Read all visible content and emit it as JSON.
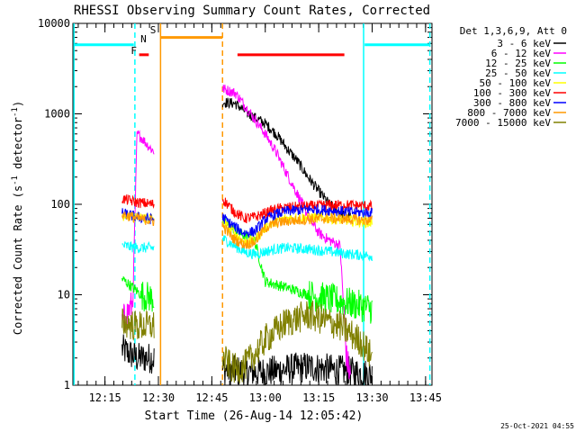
{
  "chart_data": {
    "type": "line",
    "title": "RHESSI Observing Summary Count Rates, Corrected",
    "xlabel": "Start Time (26-Aug-14 12:05:42)",
    "ylabel": "Corrected Count Rate (s⁻¹ detector⁻¹)",
    "ylabel_main": "Corrected Count Rate (s",
    "ylabel_sup1": "-1",
    "ylabel_mid": " detector",
    "ylabel_sup2": "-1",
    "ylabel_end": ")",
    "timestamp": "25-Oct-2021 04:55",
    "legend_header": "Det 1,3,6,9, Att 0",
    "yscale": "log",
    "xlim": [
      12.1,
      13.78
    ],
    "ylim": [
      1,
      10000
    ],
    "x_ticks": [
      {
        "v": 12.25,
        "label": "12:15"
      },
      {
        "v": 12.5,
        "label": "12:30"
      },
      {
        "v": 12.75,
        "label": "12:45"
      },
      {
        "v": 13.0,
        "label": "13:00"
      },
      {
        "v": 13.25,
        "label": "13:15"
      },
      {
        "v": 13.5,
        "label": "13:30"
      },
      {
        "v": 13.75,
        "label": "13:45"
      }
    ],
    "y_ticks": [
      {
        "v": 1,
        "label": "1"
      },
      {
        "v": 10,
        "label": "10"
      },
      {
        "v": 100,
        "label": "100"
      },
      {
        "v": 1000,
        "label": "1000"
      },
      {
        "v": 10000,
        "label": "10000"
      }
    ],
    "x_minor_step": 0.0416667,
    "segments": [
      [
        12.33,
        12.48
      ],
      [
        12.8,
        13.51
      ]
    ],
    "series": [
      {
        "name": "3 - 6 keV",
        "color": "#000000",
        "points": [
          [
            12.33,
            2.5
          ],
          [
            12.4,
            2
          ],
          [
            12.48,
            2
          ],
          [
            12.8,
            1.5
          ],
          [
            12.9,
            1.4
          ],
          [
            13.0,
            1.4
          ],
          [
            13.1,
            1.5
          ],
          [
            13.2,
            1.6
          ],
          [
            13.3,
            1.5
          ],
          [
            13.4,
            1.4
          ],
          [
            13.5,
            1.3
          ]
        ],
        "flare": [
          [
            12.8,
            1350
          ],
          [
            12.86,
            1300
          ],
          [
            12.92,
            1000
          ],
          [
            13.0,
            780
          ],
          [
            13.05,
            600
          ],
          [
            13.1,
            420
          ],
          [
            13.15,
            300
          ],
          [
            13.2,
            200
          ],
          [
            13.25,
            140
          ],
          [
            13.3,
            100
          ],
          [
            13.35,
            80
          ],
          [
            13.4,
            72
          ]
        ]
      },
      {
        "name": "6 - 12 keV",
        "color": "#ff00ff",
        "points": [
          [
            12.33,
            5
          ],
          [
            12.38,
            8
          ],
          [
            12.4,
            600
          ],
          [
            12.42,
            550
          ],
          [
            12.45,
            450
          ],
          [
            12.48,
            380
          ],
          [
            12.8,
            1900
          ],
          [
            12.86,
            1700
          ],
          [
            12.92,
            1100
          ],
          [
            13.0,
            600
          ],
          [
            13.05,
            380
          ],
          [
            13.1,
            220
          ],
          [
            13.15,
            130
          ],
          [
            13.2,
            75
          ],
          [
            13.25,
            48
          ],
          [
            13.3,
            40
          ],
          [
            13.35,
            35
          ],
          [
            13.38,
            2
          ],
          [
            13.4,
            1.2
          ]
        ]
      },
      {
        "name": "12 - 25 keV",
        "color": "#00ff00",
        "points": [
          [
            12.33,
            15
          ],
          [
            12.38,
            12
          ],
          [
            12.42,
            10
          ],
          [
            12.48,
            9
          ],
          [
            12.8,
            65
          ],
          [
            12.9,
            45
          ],
          [
            12.95,
            40
          ],
          [
            13.0,
            14
          ],
          [
            13.1,
            12
          ],
          [
            13.2,
            10
          ],
          [
            13.3,
            9
          ],
          [
            13.4,
            8
          ],
          [
            13.5,
            7
          ]
        ]
      },
      {
        "name": "25 - 50 keV",
        "color": "#00ffff",
        "points": [
          [
            12.33,
            35
          ],
          [
            12.4,
            33
          ],
          [
            12.48,
            33
          ],
          [
            12.8,
            42
          ],
          [
            12.9,
            30
          ],
          [
            12.95,
            28
          ],
          [
            13.0,
            30
          ],
          [
            13.05,
            32
          ],
          [
            13.1,
            33
          ],
          [
            13.2,
            32
          ],
          [
            13.3,
            30
          ],
          [
            13.4,
            28
          ],
          [
            13.5,
            27
          ]
        ]
      },
      {
        "name": "50 - 100 keV",
        "color": "#ffff00",
        "points": [
          [
            12.33,
            75
          ],
          [
            12.4,
            72
          ],
          [
            12.48,
            70
          ],
          [
            12.8,
            62
          ],
          [
            12.85,
            50
          ],
          [
            12.9,
            38
          ],
          [
            12.95,
            40
          ],
          [
            13.0,
            55
          ],
          [
            13.05,
            65
          ],
          [
            13.1,
            70
          ],
          [
            13.2,
            72
          ],
          [
            13.3,
            70
          ],
          [
            13.4,
            66
          ],
          [
            13.5,
            62
          ]
        ]
      },
      {
        "name": "100 - 300 keV",
        "color": "#ff0000",
        "points": [
          [
            12.33,
            115
          ],
          [
            12.4,
            105
          ],
          [
            12.48,
            100
          ],
          [
            12.8,
            115
          ],
          [
            12.85,
            85
          ],
          [
            12.9,
            70
          ],
          [
            12.95,
            72
          ],
          [
            13.0,
            80
          ],
          [
            13.05,
            88
          ],
          [
            13.1,
            92
          ],
          [
            13.2,
            95
          ],
          [
            13.3,
            98
          ],
          [
            13.4,
            98
          ],
          [
            13.5,
            95
          ]
        ]
      },
      {
        "name": "300 - 800 keV",
        "color": "#0000ff",
        "points": [
          [
            12.33,
            80
          ],
          [
            12.4,
            72
          ],
          [
            12.48,
            68
          ],
          [
            12.8,
            72
          ],
          [
            12.85,
            58
          ],
          [
            12.9,
            48
          ],
          [
            12.95,
            50
          ],
          [
            13.0,
            68
          ],
          [
            13.05,
            78
          ],
          [
            13.1,
            84
          ],
          [
            13.2,
            88
          ],
          [
            13.3,
            86
          ],
          [
            13.4,
            82
          ],
          [
            13.5,
            80
          ]
        ]
      },
      {
        "name": "800 - 7000 keV",
        "color": "#ff9900",
        "points": [
          [
            12.33,
            78
          ],
          [
            12.4,
            70
          ],
          [
            12.48,
            65
          ],
          [
            12.8,
            58
          ],
          [
            12.85,
            42
          ],
          [
            12.9,
            36
          ],
          [
            12.95,
            38
          ],
          [
            13.0,
            55
          ],
          [
            13.05,
            62
          ],
          [
            13.1,
            65
          ],
          [
            13.2,
            68
          ],
          [
            13.3,
            70
          ],
          [
            13.4,
            68
          ],
          [
            13.5,
            66
          ]
        ]
      },
      {
        "name": "7000 - 15000 keV",
        "color": "#808000",
        "points": [
          [
            12.33,
            5
          ],
          [
            12.4,
            4.5
          ],
          [
            12.48,
            4.5
          ],
          [
            12.8,
            2
          ],
          [
            12.85,
            1.5
          ],
          [
            12.9,
            1.6
          ],
          [
            12.95,
            2.2
          ],
          [
            13.0,
            3.2
          ],
          [
            13.05,
            4
          ],
          [
            13.1,
            5
          ],
          [
            13.2,
            6
          ],
          [
            13.3,
            5
          ],
          [
            13.35,
            4.5
          ],
          [
            13.45,
            3
          ],
          [
            13.5,
            2
          ]
        ]
      }
    ],
    "attenuator_lines": [
      {
        "x": 12.105,
        "color": "#00ffff",
        "style": "solid"
      },
      {
        "x": 12.39,
        "color": "#00ffff",
        "style": "dashed"
      },
      {
        "x": 12.51,
        "color": "#ff9900",
        "style": "solid"
      },
      {
        "x": 12.8,
        "color": "#ff9900",
        "style": "dashed"
      },
      {
        "x": 13.46,
        "color": "#00ffff",
        "style": "solid"
      },
      {
        "x": 13.77,
        "color": "#00ffff",
        "style": "dashed"
      }
    ],
    "flag_bars": [
      {
        "x0": 12.105,
        "x1": 12.385,
        "y": 5800,
        "color": "#00ffff"
      },
      {
        "x0": 12.51,
        "x1": 12.8,
        "y": 7000,
        "color": "#ff9900"
      },
      {
        "x0": 12.41,
        "x1": 12.455,
        "y": 4500,
        "color": "#ff0000"
      },
      {
        "x0": 12.87,
        "x1": 13.37,
        "y": 4500,
        "color": "#ff0000"
      },
      {
        "x0": 13.465,
        "x1": 13.77,
        "y": 5800,
        "color": "#00ffff"
      }
    ],
    "flag_labels": [
      {
        "text": "F",
        "x": 12.385,
        "y": 4600,
        "color": "#ff0000"
      },
      {
        "text": "N",
        "x": 12.43,
        "y": 6200,
        "color": "#00ffff"
      },
      {
        "text": "S",
        "x": 12.475,
        "y": 7800,
        "color": "#ff9900"
      }
    ]
  }
}
